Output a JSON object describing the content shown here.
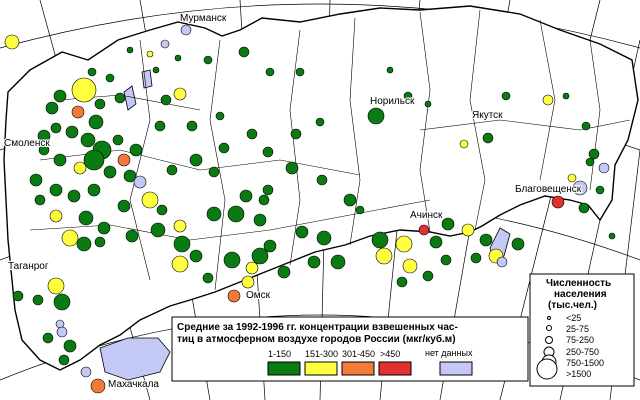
{
  "map": {
    "legend": {
      "title_line1": "Средние за 1992-1996 гг. концентрации взвешенных час-",
      "title_line2": "тиц в атмосферном воздухе городов России (мкг/куб.м)",
      "classes": [
        {
          "label": "1-150",
          "color": "#0a7a12"
        },
        {
          "label": "151-300",
          "color": "#ffff40"
        },
        {
          "label": "301-450",
          "color": "#f47a3a"
        },
        {
          "label": ">450",
          "color": "#e03030"
        },
        {
          "label": "нет данных",
          "color": "#c4c8f4"
        }
      ]
    },
    "size_legend": {
      "title_line1": "Численность",
      "title_line2": "населения",
      "title_line3": "(тыс.чел.)",
      "classes": [
        "<25",
        "25-75",
        "75-250",
        "250-750",
        "750-1500",
        ">1500"
      ]
    },
    "cities": [
      {
        "name": "Мурманск"
      },
      {
        "name": "Смоленск"
      },
      {
        "name": "Норильск"
      },
      {
        "name": "Якутск"
      },
      {
        "name": "Благовещенск"
      },
      {
        "name": "Ачинск"
      },
      {
        "name": "Таганрог"
      },
      {
        "name": "Омск"
      },
      {
        "name": "Махачкала"
      }
    ],
    "colors": {
      "land": "#ffffff",
      "water": "#c4c8f4",
      "border": "#000000",
      "grid": "#000000"
    }
  }
}
